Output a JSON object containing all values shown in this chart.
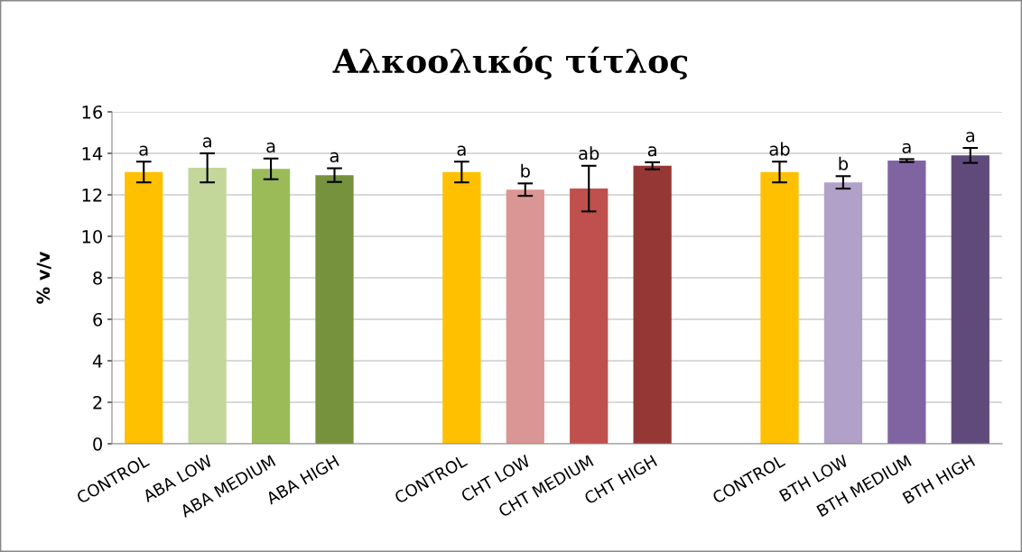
{
  "chart_data": {
    "type": "bar",
    "title": "Αλκοολικός τίτλος",
    "ylabel": "% v/v",
    "categories": [
      "CONTROL",
      "ABA LOW",
      "ABA MEDIUM",
      "ABA HIGH",
      null,
      "CONTROL",
      "CHT LOW",
      "CHT MEDIUM",
      "CHT HIGH",
      null,
      "CONTROL",
      "BTH LOW",
      "BTH MEDIUM",
      "BTH HIGH"
    ],
    "values": [
      13.1,
      13.3,
      13.25,
      12.95,
      null,
      13.1,
      12.25,
      12.3,
      13.4,
      null,
      13.1,
      12.6,
      13.65,
      13.9
    ],
    "errors": [
      0.5,
      0.7,
      0.5,
      0.33,
      null,
      0.5,
      0.3,
      1.1,
      0.17,
      null,
      0.5,
      0.3,
      0.07,
      0.36
    ],
    "colors": [
      "#ffc000",
      "#c4d79b",
      "#9bbb59",
      "#76923c",
      null,
      "#ffc000",
      "#da9694",
      "#c0504d",
      "#953735",
      null,
      "#ffc000",
      "#b1a0c7",
      "#8064a2",
      "#604a7b"
    ],
    "value_labels": [
      "a",
      "a",
      "a",
      "a",
      null,
      "a",
      "b",
      "ab",
      "a",
      null,
      "ab",
      "b",
      "a",
      "a"
    ],
    "ylim": [
      0,
      16
    ],
    "yticks": [
      0,
      2,
      4,
      6,
      8,
      10,
      12,
      14,
      16
    ],
    "grid": "y",
    "legend": false
  }
}
